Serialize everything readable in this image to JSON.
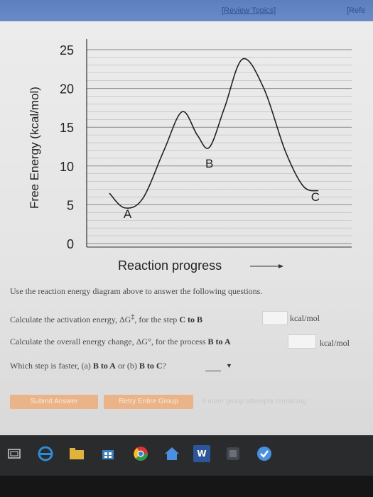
{
  "header": {
    "review_topics": "[Review Topics]",
    "refresh": "[Refe"
  },
  "chart_data": {
    "type": "line",
    "title": "",
    "xlabel": "Reaction progress",
    "ylabel": "Free Energy (kcal/mol)",
    "ylim": [
      0,
      25
    ],
    "y_ticks": [
      "0",
      "5",
      "10",
      "15",
      "20",
      "25"
    ],
    "grid": true,
    "series": [
      {
        "values": [
          [
            0.0,
            6.5
          ],
          [
            0.05,
            4.6
          ],
          [
            0.11,
            5.8
          ],
          [
            0.18,
            12.0
          ],
          [
            0.24,
            17.0
          ],
          [
            0.29,
            14.0
          ],
          [
            0.33,
            12.4
          ],
          [
            0.38,
            17.5
          ],
          [
            0.44,
            23.8
          ],
          [
            0.51,
            20.0
          ],
          [
            0.58,
            12.0
          ],
          [
            0.64,
            7.4
          ],
          [
            0.69,
            6.8
          ]
        ]
      }
    ],
    "annotations": [
      {
        "text": "A",
        "x": 0.06,
        "y": 3.3
      },
      {
        "text": "B",
        "x": 0.33,
        "y": 9.8
      },
      {
        "text": "C",
        "x": 0.68,
        "y": 5.5
      }
    ]
  },
  "questions": {
    "instructions": "Use the reaction energy diagram above to answer the following questions.",
    "q1_text": "Calculate the activation energy, ΔG",
    "q1_sup": "‡",
    "q1_text2": ", for the step",
    "q1_bold": "C to B",
    "q1_unit": "kcal/mol",
    "q2_text": "Calculate the overall energy change, ΔG°, for the process",
    "q2_bold": "B to A",
    "q2_unit": "kcal/mol",
    "q3_text": "Which step is faster, (a)",
    "q3_opt_a": "B to A",
    "q3_or": "or (b)",
    "q3_opt_b": "B to C",
    "q3_q": "?",
    "q3_select_arrow": "▼"
  },
  "buttons": {
    "submit": "Submit Answer",
    "retry": "Retry Entire Group",
    "attempts": "6 more group attempts remaining"
  },
  "taskbar": {
    "colors": {
      "edge": "#2e8bd6",
      "store": "#3b7fc4",
      "chrome": "#d33",
      "word": "#2b579a",
      "check": "#4a90e2"
    },
    "word_label": "W"
  }
}
